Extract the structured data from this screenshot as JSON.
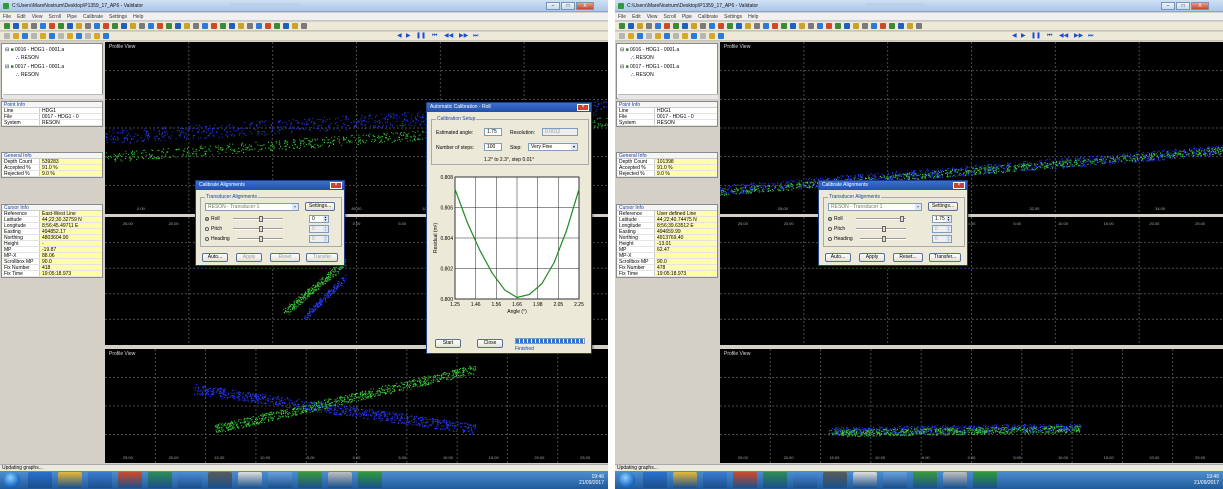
{
  "left": {
    "window": {
      "title": "C:\\Users\\MareNostrum\\Desktop\\P1359_17_AP6 - Validator",
      "title_suffix": "",
      "min_label": "–",
      "max_label": "□",
      "close_label": "X"
    },
    "menu": [
      "File",
      "Edit",
      "View",
      "Scroll",
      "Pipe",
      "Calibrate",
      "Settings",
      "Help"
    ],
    "tree": [
      {
        "label": "0016 - HDG1 - 0001.a",
        "expand": "⊟"
      },
      {
        "label": "RESON",
        "expand": ""
      },
      {
        "label": "0017 - HDG1 - 0001.a",
        "expand": "⊟"
      },
      {
        "label": "RESON",
        "expand": ""
      }
    ],
    "point_info": {
      "title": "Point Info",
      "rows": [
        {
          "k": "Line",
          "v": "HDG1"
        },
        {
          "k": "File",
          "v": "0017 - HDG1 - 0"
        },
        {
          "k": "System",
          "v": "RESON"
        }
      ]
    },
    "general_info": {
      "title": "General Info",
      "rows": [
        {
          "k": "Depth Count",
          "v": "539283"
        },
        {
          "k": "Accepted %",
          "v": "91.0 %"
        },
        {
          "k": "Rejected %",
          "v": "9.0 %"
        }
      ]
    },
    "cursor_info": {
      "title": "Cursor Info",
      "rows": [
        {
          "k": "Reference",
          "v": "East-West Line"
        },
        {
          "k": "Latitude",
          "v": "44;22;30.32759 N"
        },
        {
          "k": "Longitude",
          "v": "8;56;45.49711 E"
        },
        {
          "k": "Easting",
          "v": "494852.17"
        },
        {
          "k": "Northing",
          "v": "4803604.90"
        },
        {
          "k": "Height",
          "v": "-"
        },
        {
          "k": "MP",
          "v": "-19.87"
        },
        {
          "k": "MP-X",
          "v": "88.06"
        },
        {
          "k": "Scrollbox MP",
          "v": "90.0"
        },
        {
          "k": "Fix Number",
          "v": "418"
        },
        {
          "k": "Fix Time",
          "v": "19:05:18.973"
        }
      ]
    },
    "views": {
      "profile": "Profile View",
      "front": "",
      "side": "Profile View",
      "profile_axis": [
        "0.00",
        "40.00",
        "60.00",
        "80.00",
        "100.00",
        "120.00",
        "140.00"
      ],
      "side_axis": [
        "25.00",
        "20.00",
        "15.00",
        "10.00",
        "5.00",
        "0.00",
        "5.00",
        "10.00",
        "15.00",
        "20.00",
        "25.00"
      ]
    },
    "calibrate": {
      "title": "Calibrate Alignments",
      "group": "Transducer Alignments",
      "transducer": "RESON - Transducer 1",
      "settings": "Settings...",
      "roll": "Roll",
      "pitch": "Pitch",
      "heading": "Heading",
      "roll_value": "0",
      "pitch_value": "0",
      "heading_value": "0",
      "auto": "Auto...",
      "apply": "Apply",
      "reset": "Reset",
      "transfer": "Transfer"
    },
    "auto_cal": {
      "title": "Automatic Calibration - Roll",
      "group": "Calibration Setup",
      "est_label": "Estimated angle:",
      "est_value": "1.75",
      "res_label": "Resolution:",
      "res_value": "0.0012",
      "steps_label": "Number of steps:",
      "steps_value": "100",
      "step_label": "Step:",
      "step_mode": "Very Fine",
      "range_text": "1.2° to 2.3°, step 0.01°",
      "chart_ylabel": "Residual (m²)",
      "chart_xlabel": "Angle (°)",
      "start": "Start",
      "close": "Close",
      "status": "Finished",
      "progress": 1.0,
      "chart_data": {
        "type": "line",
        "xlim": [
          1.25,
          2.25
        ],
        "ylim": [
          0.8,
          0.808
        ],
        "xticks": [
          "1.25",
          "1.46",
          "1.56",
          "1.66",
          "1.98",
          "2.05",
          "2.25"
        ],
        "yticks": [
          "0.800",
          "0.802",
          "0.804",
          "0.806",
          "0.808"
        ],
        "series": [
          {
            "points": [
              [
                1.25,
                0.8072
              ],
              [
                1.35,
                0.805
              ],
              [
                1.45,
                0.8032
              ],
              [
                1.55,
                0.8017
              ],
              [
                1.65,
                0.8006
              ],
              [
                1.75,
                0.8001
              ],
              [
                1.85,
                0.8003
              ],
              [
                1.95,
                0.801
              ],
              [
                2.05,
                0.8024
              ],
              [
                2.15,
                0.8045
              ],
              [
                2.25,
                0.8072
              ]
            ]
          }
        ]
      }
    },
    "status": "Updating graphs...",
    "clock": {
      "time": "19:46",
      "date": "21/09/2017"
    }
  },
  "right": {
    "window": {
      "title": "C:\\Users\\MareNostrum\\Desktop\\P1359_17_AP6 - Validator",
      "min_label": "–",
      "max_label": "□",
      "close_label": "X"
    },
    "menu": [
      "File",
      "Edit",
      "View",
      "Scroll",
      "Pipe",
      "Calibrate",
      "Settings",
      "Help"
    ],
    "tree": [
      {
        "label": "0016 - HDG1 - 0001.a",
        "expand": "⊟"
      },
      {
        "label": "RESON",
        "expand": ""
      },
      {
        "label": "0017 - HDG1 - 0001.a",
        "expand": "⊟"
      },
      {
        "label": "RESON",
        "expand": ""
      }
    ],
    "point_info": {
      "title": "Point Info",
      "rows": [
        {
          "k": "Line",
          "v": "HDG1"
        },
        {
          "k": "File",
          "v": "0017 - HDG1 - 0"
        },
        {
          "k": "System",
          "v": "RESON"
        }
      ]
    },
    "general_info": {
      "title": "General Info",
      "rows": [
        {
          "k": "Depth Count",
          "v": "101398"
        },
        {
          "k": "Accepted %",
          "v": "91.0 %"
        },
        {
          "k": "Rejected %",
          "v": "9.0 %"
        }
      ]
    },
    "cursor_info": {
      "title": "Cursor Info",
      "rows": [
        {
          "k": "Reference",
          "v": "User defined Line"
        },
        {
          "k": "Latitude",
          "v": "44;22;40.74475 N"
        },
        {
          "k": "Longitude",
          "v": "8;56;39.63512 E"
        },
        {
          "k": "Easting",
          "v": "494659.99"
        },
        {
          "k": "Northing",
          "v": "4913769.40"
        },
        {
          "k": "Height",
          "v": "-13.01"
        },
        {
          "k": "MP",
          "v": "62.47"
        },
        {
          "k": "MP-X",
          "v": ""
        },
        {
          "k": "Scrollbox MP",
          "v": "90.0"
        },
        {
          "k": "Fix Number",
          "v": "478"
        },
        {
          "k": "Fix Time",
          "v": "19:05:18.973"
        }
      ]
    },
    "views": {
      "profile": "Profile View",
      "side": "Profile View",
      "profile_axis": [
        "28.00",
        "30.00",
        "32.00",
        "34.00"
      ],
      "side_axis": [
        "25.00",
        "20.00",
        "15.00",
        "10.00",
        "5.00",
        "0.00",
        "5.00",
        "10.00",
        "15.00",
        "20.00",
        "25.00"
      ]
    },
    "calibrate": {
      "title": "Calibrate Alignments",
      "group": "Transducer Alignments",
      "transducer": "RESON - Transducer 1",
      "settings": "Settings...",
      "roll": "Roll",
      "pitch": "Pitch",
      "heading": "Heading",
      "roll_value": "1.75",
      "pitch_value": "0",
      "heading_value": "0",
      "auto": "Auto...",
      "apply": "Apply",
      "reset": "Reset...",
      "transfer": "Transfer..."
    },
    "status": "Updating graphs...",
    "clock": {
      "time": "19:46",
      "date": "21/09/2017"
    }
  },
  "colors": {
    "dots_green": "#3ad23a",
    "dots_blue": "#2a3cff",
    "curve": "#1e8a1e",
    "accent": "#1a44a8"
  }
}
